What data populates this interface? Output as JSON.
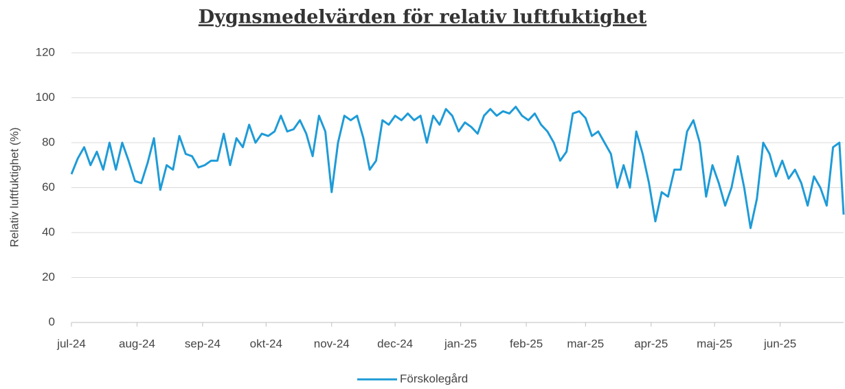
{
  "chart_data": {
    "type": "line",
    "title": "Dygnsmedelvärden för relativ luftfuktighet",
    "y_label": "Relativ luftfuktighet (%)",
    "x": [
      0,
      3,
      6,
      9,
      12,
      15,
      18,
      21,
      24,
      27,
      30,
      33,
      36,
      39,
      42,
      45,
      48,
      51,
      54,
      57,
      60,
      63,
      66,
      69,
      72,
      75,
      78,
      81,
      84,
      87,
      90,
      93,
      96,
      99,
      102,
      105,
      108,
      111,
      114,
      117,
      120,
      123,
      126,
      129,
      132,
      135,
      138,
      141,
      144,
      147,
      150,
      153,
      156,
      159,
      162,
      165,
      168,
      171,
      174,
      177,
      180,
      183,
      186,
      189,
      192,
      195,
      198,
      201,
      204,
      207,
      210,
      213,
      216,
      219,
      222,
      225,
      228,
      231,
      234,
      237,
      240,
      243,
      246,
      249,
      252,
      255,
      258,
      261,
      264,
      267,
      270,
      273,
      276,
      279,
      282,
      285,
      288,
      291,
      294,
      297,
      300,
      303,
      306,
      309,
      312,
      315,
      318,
      321,
      324,
      327,
      330,
      333,
      336,
      339,
      342,
      345,
      348,
      351,
      354,
      357,
      360,
      363,
      365
    ],
    "series": [
      {
        "name": "Förskolegård",
        "color": "#1e9bd7",
        "values": [
          66,
          73,
          78,
          70,
          76,
          68,
          80,
          68,
          80,
          72,
          63,
          62,
          71,
          82,
          59,
          70,
          68,
          83,
          75,
          74,
          69,
          70,
          72,
          72,
          84,
          70,
          82,
          78,
          88,
          80,
          84,
          83,
          85,
          92,
          85,
          86,
          90,
          84,
          74,
          92,
          85,
          58,
          80,
          92,
          90,
          92,
          82,
          68,
          72,
          90,
          88,
          92,
          90,
          93,
          90,
          92,
          80,
          92,
          88,
          95,
          92,
          85,
          89,
          87,
          84,
          92,
          95,
          92,
          94,
          93,
          96,
          92,
          90,
          93,
          88,
          85,
          80,
          72,
          76,
          93,
          94,
          91,
          83,
          85,
          80,
          75,
          60,
          70,
          60,
          85,
          75,
          62,
          45,
          58,
          56,
          68,
          68,
          85,
          90,
          80,
          56,
          70,
          62,
          52,
          60,
          74,
          60,
          42,
          55,
          80,
          75,
          65,
          72,
          64,
          68,
          62,
          52,
          65,
          60,
          52,
          78,
          80,
          48
        ]
      }
    ],
    "xlim": [
      0,
      365
    ],
    "xticks": [
      {
        "value": 0,
        "label": "jul-24"
      },
      {
        "value": 31,
        "label": "aug-24"
      },
      {
        "value": 62,
        "label": "sep-24"
      },
      {
        "value": 92,
        "label": "okt-24"
      },
      {
        "value": 123,
        "label": "nov-24"
      },
      {
        "value": 153,
        "label": "dec-24"
      },
      {
        "value": 184,
        "label": "jan-25"
      },
      {
        "value": 215,
        "label": "feb-25"
      },
      {
        "value": 243,
        "label": "mar-25"
      },
      {
        "value": 274,
        "label": "apr-25"
      },
      {
        "value": 304,
        "label": "maj-25"
      },
      {
        "value": 335,
        "label": "jun-25"
      }
    ],
    "ylim": [
      0,
      120
    ],
    "yticks": [
      0,
      20,
      40,
      60,
      80,
      100,
      120
    ],
    "grid": true,
    "legend": "bottom"
  }
}
